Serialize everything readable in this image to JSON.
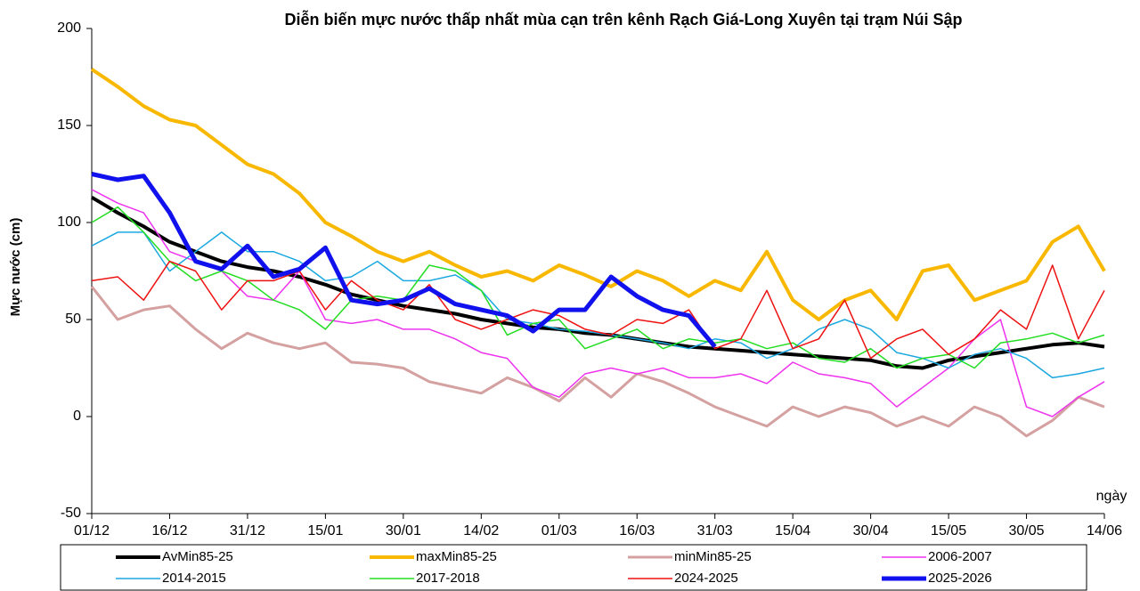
{
  "chart_data": {
    "type": "line",
    "title": "Diễn biến mực nước thấp nhất mùa cạn trên kênh Rạch Giá-Long Xuyên tại trạm Núi Sập",
    "y_label": "Mực nước (cm)",
    "x_label": "ngày",
    "categories": [
      "01/12",
      null,
      null,
      "16/12",
      null,
      null,
      "31/12",
      null,
      null,
      "15/01",
      null,
      null,
      "30/01",
      null,
      null,
      "14/02",
      null,
      null,
      "01/03",
      null,
      null,
      "16/03",
      null,
      null,
      "31/03",
      null,
      null,
      "15/04",
      null,
      null,
      "30/04",
      null,
      null,
      "15/05",
      null,
      null,
      "30/05",
      null,
      null,
      "14/06"
    ],
    "ylim": [
      -50,
      200
    ],
    "yticks": [
      -50,
      0,
      50,
      100,
      150,
      200
    ],
    "series": [
      {
        "name": "AvMin85-25",
        "color": "#000000",
        "width": 4,
        "values": [
          113,
          105,
          98,
          90,
          85,
          80,
          77,
          75,
          72,
          68,
          63,
          60,
          57,
          55,
          53,
          50,
          48,
          46,
          45,
          43,
          42,
          40,
          38,
          36,
          35,
          34,
          33,
          32,
          31,
          30,
          29,
          26,
          25,
          29,
          31,
          33,
          35,
          37,
          38,
          36
        ]
      },
      {
        "name": "maxMin85-25",
        "color": "#f9b800",
        "width": 4,
        "values": [
          179,
          170,
          160,
          153,
          150,
          140,
          130,
          125,
          115,
          100,
          93,
          85,
          80,
          85,
          78,
          72,
          75,
          70,
          78,
          73,
          67,
          75,
          70,
          62,
          70,
          65,
          85,
          60,
          50,
          60,
          65,
          50,
          75,
          78,
          60,
          65,
          70,
          90,
          98,
          75
        ]
      },
      {
        "name": "minMin85-25",
        "color": "#d4a0a0",
        "width": 3,
        "values": [
          67,
          50,
          55,
          57,
          45,
          35,
          43,
          38,
          35,
          38,
          28,
          27,
          25,
          18,
          15,
          12,
          20,
          15,
          8,
          20,
          10,
          22,
          18,
          12,
          5,
          0,
          -5,
          5,
          0,
          5,
          2,
          -5,
          0,
          -5,
          5,
          0,
          -10,
          -2,
          10,
          5
        ]
      },
      {
        "name": "2006-2007",
        "color": "#ee33ee",
        "width": 1.5,
        "values": [
          117,
          110,
          105,
          85,
          80,
          75,
          62,
          60,
          75,
          50,
          48,
          50,
          45,
          45,
          40,
          33,
          30,
          15,
          10,
          22,
          25,
          22,
          25,
          20,
          20,
          22,
          17,
          28,
          22,
          20,
          17,
          5,
          15,
          25,
          40,
          50,
          5,
          0,
          10,
          18
        ]
      },
      {
        "name": "2014-2015",
        "color": "#1ba8e0",
        "width": 1.5,
        "values": [
          88,
          95,
          95,
          75,
          85,
          95,
          85,
          85,
          80,
          70,
          72,
          80,
          70,
          70,
          73,
          65,
          50,
          48,
          45,
          44,
          42,
          40,
          38,
          35,
          40,
          38,
          30,
          35,
          45,
          50,
          45,
          33,
          30,
          25,
          32,
          35,
          30,
          20,
          22,
          25
        ]
      },
      {
        "name": "2017-2018",
        "color": "#22dd22",
        "width": 1.5,
        "values": [
          100,
          108,
          95,
          80,
          70,
          75,
          70,
          60,
          55,
          45,
          60,
          62,
          60,
          78,
          75,
          65,
          42,
          48,
          50,
          35,
          40,
          45,
          35,
          40,
          38,
          40,
          35,
          38,
          30,
          28,
          35,
          25,
          30,
          32,
          25,
          38,
          40,
          43,
          38,
          42
        ]
      },
      {
        "name": "2024-2025",
        "color": "#ee1111",
        "width": 1.5,
        "values": [
          70,
          72,
          60,
          80,
          75,
          55,
          70,
          70,
          75,
          55,
          70,
          60,
          55,
          68,
          50,
          45,
          50,
          55,
          52,
          45,
          42,
          50,
          48,
          55,
          35,
          40,
          65,
          35,
          40,
          60,
          30,
          40,
          45,
          32,
          40,
          55,
          45,
          78,
          40,
          65
        ]
      },
      {
        "name": "2025-2026",
        "color": "#1111ee",
        "width": 5,
        "values": [
          125,
          122,
          124,
          105,
          80,
          76,
          88,
          72,
          76,
          87,
          60,
          58,
          60,
          66,
          58,
          55,
          52,
          44,
          55,
          55,
          72,
          62,
          55,
          52,
          36,
          null,
          null,
          null,
          null,
          null,
          null,
          null,
          null,
          null,
          null,
          null,
          null,
          null,
          null,
          null
        ]
      }
    ]
  }
}
